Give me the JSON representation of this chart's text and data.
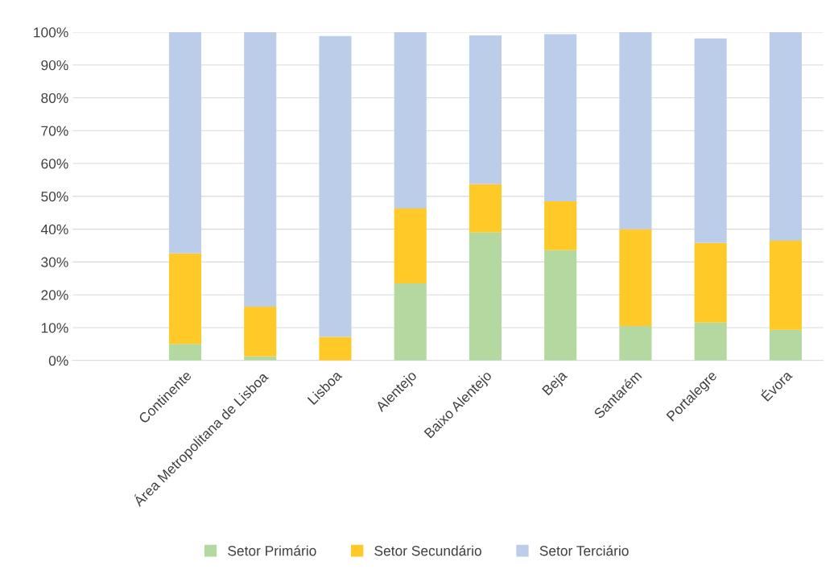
{
  "chart_data": {
    "type": "bar",
    "stacked": true,
    "categories": [
      null,
      "Continente",
      "Área Metropolitana de Lisboa",
      "Lisboa",
      "Alentejo",
      "Baixo Alentejo",
      "Beja",
      "Santarém",
      "Portalegre",
      "Évora"
    ],
    "series": [
      {
        "name": "Setor Primário",
        "color": "#b4d9a0",
        "values": [
          null,
          5,
          1.2,
          null,
          23.5,
          39,
          33.6,
          10.5,
          11.5,
          9.3
        ]
      },
      {
        "name": "Setor Secundário",
        "color": "#ffca28",
        "values": [
          null,
          27.6,
          15.2,
          7.2,
          22.8,
          14.7,
          14.9,
          29.5,
          24.3,
          27.2
        ]
      },
      {
        "name": "Setor Terciário",
        "color": "#bccde9",
        "values": [
          null,
          67.4,
          83.6,
          91.6,
          53.7,
          45.3,
          50.9,
          60,
          62.3,
          63.5
        ]
      }
    ],
    "ylim": [
      0,
      100
    ],
    "yticks": [
      {
        "value": 0,
        "label": "0%"
      },
      {
        "value": 10,
        "label": "10%"
      },
      {
        "value": 20,
        "label": "20%"
      },
      {
        "value": 30,
        "label": "30%"
      },
      {
        "value": 40,
        "label": "40%"
      },
      {
        "value": 50,
        "label": "50%"
      },
      {
        "value": 60,
        "label": "60%"
      },
      {
        "value": 70,
        "label": "70%"
      },
      {
        "value": 80,
        "label": "80%"
      },
      {
        "value": 90,
        "label": "90%"
      },
      {
        "value": 100,
        "label": "100%"
      }
    ],
    "grid": "y",
    "legend": "bottom"
  }
}
